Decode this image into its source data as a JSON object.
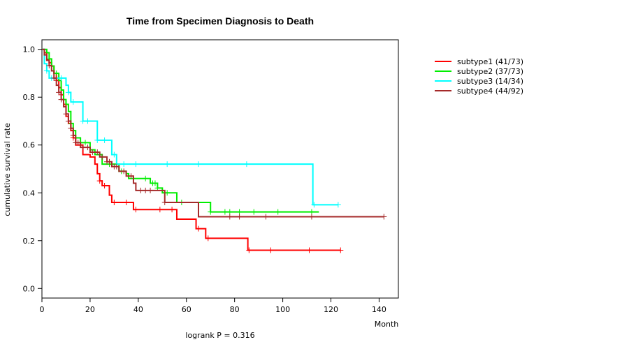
{
  "chart_data": {
    "type": "line",
    "subtype": "kaplan-meier",
    "title": "Time from Specimen Diagnosis to Death",
    "xlabel": "Month",
    "ylabel": "cumulative survival rate",
    "xlim": [
      0,
      148
    ],
    "ylim": [
      -0.04,
      1.04
    ],
    "x_ticks": [
      0,
      20,
      40,
      60,
      80,
      100,
      120,
      140
    ],
    "y_ticks": [
      0.0,
      0.2,
      0.4,
      0.6,
      0.8,
      1.0
    ],
    "x_tick_labels": [
      "0",
      "20",
      "40",
      "60",
      "80",
      "100",
      "120",
      "140"
    ],
    "y_tick_labels": [
      "0.0",
      "0.2",
      "0.4",
      "0.6",
      "0.8",
      "1.0"
    ],
    "annotation": "logrank P = 0.316",
    "legend_position": "top-right-outside",
    "series": [
      {
        "name": "subtype1 (41/73)",
        "color": "#ff0000",
        "steps": [
          [
            0,
            1.0
          ],
          [
            1,
            0.986
          ],
          [
            2,
            0.958
          ],
          [
            3,
            0.944
          ],
          [
            4,
            0.93
          ],
          [
            5,
            0.9
          ],
          [
            6,
            0.87
          ],
          [
            7,
            0.84
          ],
          [
            8,
            0.81
          ],
          [
            9,
            0.77
          ],
          [
            10,
            0.72
          ],
          [
            11,
            0.69
          ],
          [
            12,
            0.66
          ],
          [
            13,
            0.63
          ],
          [
            14,
            0.6
          ],
          [
            17,
            0.56
          ],
          [
            20,
            0.55
          ],
          [
            22,
            0.52
          ],
          [
            23,
            0.48
          ],
          [
            24,
            0.45
          ],
          [
            25,
            0.43
          ],
          [
            28,
            0.39
          ],
          [
            29,
            0.36
          ],
          [
            37,
            0.36
          ],
          [
            38,
            0.33
          ],
          [
            55,
            0.33
          ],
          [
            56,
            0.29
          ],
          [
            63,
            0.29
          ],
          [
            64,
            0.25
          ],
          [
            68,
            0.21
          ],
          [
            85,
            0.21
          ],
          [
            85.5,
            0.16
          ],
          [
            124,
            0.16
          ]
        ],
        "censor": [
          6,
          8,
          13,
          16,
          24,
          26,
          30,
          35,
          39,
          49,
          54,
          65,
          69,
          86,
          95,
          111,
          124
        ]
      },
      {
        "name": "subtype2 (37/73)",
        "color": "#00ee00",
        "steps": [
          [
            0,
            1.0
          ],
          [
            2,
            0.986
          ],
          [
            3,
            0.96
          ],
          [
            4,
            0.93
          ],
          [
            5,
            0.9
          ],
          [
            7,
            0.87
          ],
          [
            8,
            0.83
          ],
          [
            9,
            0.79
          ],
          [
            10,
            0.77
          ],
          [
            11,
            0.74
          ],
          [
            12,
            0.69
          ],
          [
            13,
            0.66
          ],
          [
            14,
            0.63
          ],
          [
            16,
            0.61
          ],
          [
            20,
            0.58
          ],
          [
            22,
            0.56
          ],
          [
            25,
            0.52
          ],
          [
            32,
            0.49
          ],
          [
            35,
            0.48
          ],
          [
            36,
            0.46
          ],
          [
            43,
            0.46
          ],
          [
            45,
            0.44
          ],
          [
            48,
            0.42
          ],
          [
            50,
            0.4
          ],
          [
            56,
            0.36
          ],
          [
            64,
            0.36
          ],
          [
            70,
            0.32
          ],
          [
            115,
            0.32
          ]
        ],
        "censor": [
          3,
          6,
          9,
          12,
          18,
          24,
          28,
          33,
          38,
          43,
          46,
          47,
          48,
          52,
          58,
          70,
          76,
          78,
          82,
          88,
          98,
          112
        ]
      },
      {
        "name": "subtype3 (14/34)",
        "color": "#00ffff",
        "steps": [
          [
            0,
            1.0
          ],
          [
            1,
            0.94
          ],
          [
            2,
            0.91
          ],
          [
            3,
            0.88
          ],
          [
            9,
            0.88
          ],
          [
            10,
            0.85
          ],
          [
            11,
            0.82
          ],
          [
            12,
            0.78
          ],
          [
            16,
            0.78
          ],
          [
            17,
            0.7
          ],
          [
            22,
            0.7
          ],
          [
            23,
            0.62
          ],
          [
            28,
            0.62
          ],
          [
            29,
            0.56
          ],
          [
            31,
            0.52
          ],
          [
            112,
            0.52
          ],
          [
            112.5,
            0.35
          ],
          [
            123,
            0.35
          ]
        ],
        "censor": [
          2,
          4,
          5,
          8,
          11,
          13,
          17,
          19,
          23,
          26,
          30,
          34,
          39,
          52,
          65,
          85,
          113,
          123
        ]
      },
      {
        "name": "subtype4 (44/92)",
        "color": "#a52a2a",
        "steps": [
          [
            0,
            1.0
          ],
          [
            1,
            0.977
          ],
          [
            2,
            0.954
          ],
          [
            3,
            0.932
          ],
          [
            4,
            0.91
          ],
          [
            5,
            0.88
          ],
          [
            6,
            0.85
          ],
          [
            7,
            0.82
          ],
          [
            8,
            0.79
          ],
          [
            9,
            0.76
          ],
          [
            10,
            0.73
          ],
          [
            11,
            0.7
          ],
          [
            12,
            0.67
          ],
          [
            13,
            0.64
          ],
          [
            14,
            0.61
          ],
          [
            16,
            0.59
          ],
          [
            20,
            0.57
          ],
          [
            24,
            0.55
          ],
          [
            27,
            0.53
          ],
          [
            29,
            0.51
          ],
          [
            32,
            0.49
          ],
          [
            35,
            0.47
          ],
          [
            38,
            0.44
          ],
          [
            39,
            0.41
          ],
          [
            43,
            0.41
          ],
          [
            51,
            0.36
          ],
          [
            64,
            0.36
          ],
          [
            65,
            0.3
          ],
          [
            142,
            0.3
          ]
        ],
        "censor": [
          3,
          5,
          7,
          8,
          10,
          11,
          12,
          13,
          14,
          15,
          17,
          19,
          21,
          23,
          25,
          27,
          28,
          30,
          31,
          34,
          37,
          41,
          43,
          45,
          51,
          78,
          82,
          93,
          112,
          142
        ]
      }
    ]
  }
}
